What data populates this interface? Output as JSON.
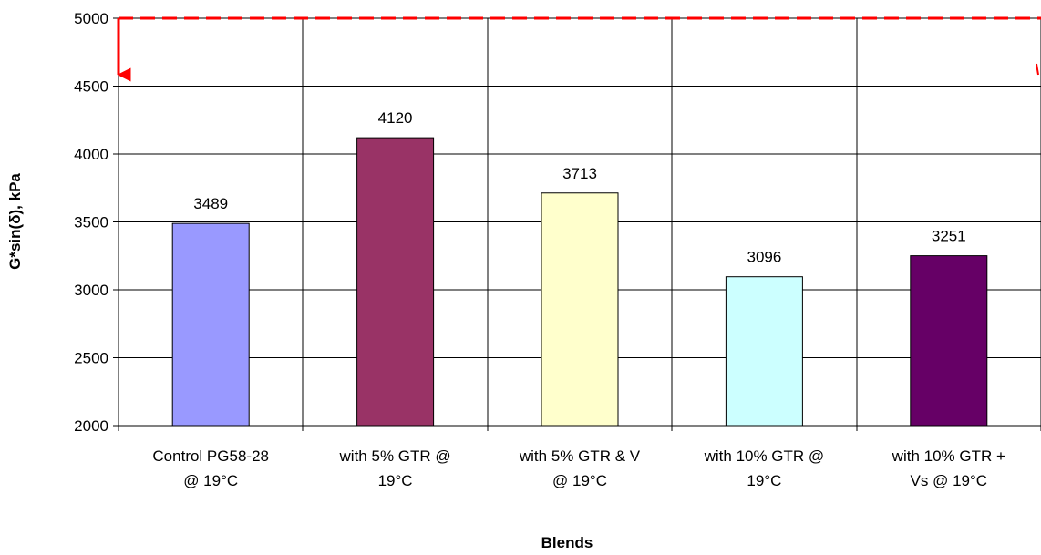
{
  "chart_data": {
    "type": "bar",
    "title": "",
    "xlabel": "Blends",
    "ylabel": "G*sin(δ), kPa",
    "ylim": [
      2000,
      5000
    ],
    "yticks": [
      2000,
      2500,
      3000,
      3500,
      4000,
      4500,
      5000
    ],
    "grid": true,
    "categories": [
      [
        "Control PG58-28",
        "@ 19°C"
      ],
      [
        "with 5% GTR @",
        "19°C"
      ],
      [
        "with 5% GTR & V",
        "@ 19°C"
      ],
      [
        "with 10% GTR @",
        "19°C"
      ],
      [
        "with 10% GTR +",
        "Vs @ 19°C"
      ]
    ],
    "values": [
      3489,
      4120,
      3713,
      3096,
      3251
    ],
    "data_labels": [
      "3489",
      "4120",
      "3713",
      "3096",
      "3251"
    ],
    "bar_colors": [
      "#9999ff",
      "#993366",
      "#ffffcc",
      "#ccffff",
      "#660066"
    ],
    "reference_line": {
      "value": 5000,
      "color": "#ff0000",
      "style": "dashed"
    }
  }
}
